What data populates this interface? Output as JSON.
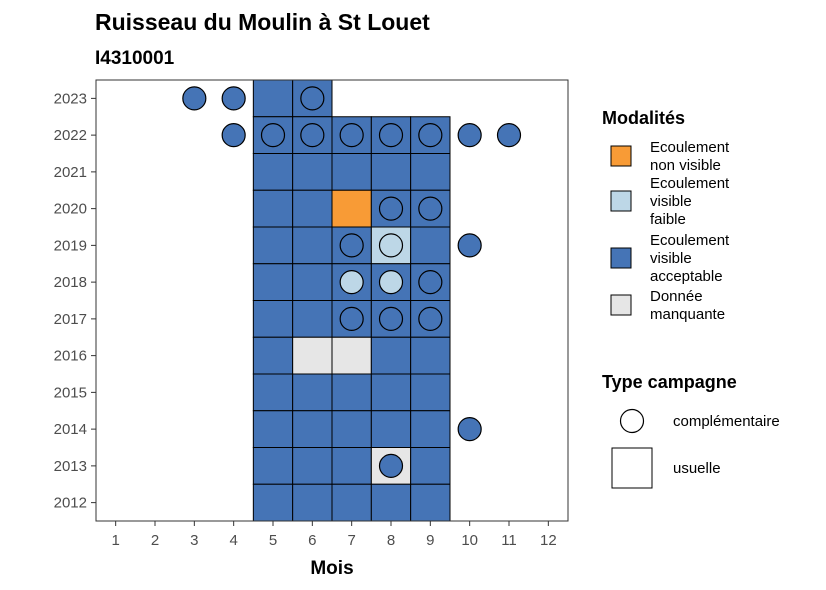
{
  "chart_data": {
    "type": "heatmap",
    "title": "Ruisseau du Moulin à St Louet",
    "subtitle": "I4310001",
    "xlabel": "Mois",
    "ylabel": "",
    "x_ticks": [
      "1",
      "2",
      "3",
      "4",
      "5",
      "6",
      "7",
      "8",
      "9",
      "10",
      "11",
      "12"
    ],
    "y_ticks": [
      "2012",
      "2013",
      "2014",
      "2015",
      "2016",
      "2017",
      "2018",
      "2019",
      "2020",
      "2021",
      "2022",
      "2023"
    ],
    "xlim": [
      0.5,
      12.5
    ],
    "ylim": [
      2011.5,
      2023.5
    ],
    "grid": false,
    "legend_position": "right",
    "colors": {
      "Ecoulement non visible": "#f89b36",
      "Ecoulement visible faible": "#bdd7e7",
      "Ecoulement visible acceptable": "#4574b6",
      "Donnée manquante": "#e6e6e6"
    },
    "squares": [
      {
        "year": 2023,
        "month": 5,
        "value": "Ecoulement visible acceptable"
      },
      {
        "year": 2023,
        "month": 6,
        "value": "Ecoulement visible acceptable"
      },
      {
        "year": 2022,
        "month": 5,
        "value": "Ecoulement visible acceptable"
      },
      {
        "year": 2022,
        "month": 6,
        "value": "Ecoulement visible acceptable"
      },
      {
        "year": 2022,
        "month": 7,
        "value": "Ecoulement visible acceptable"
      },
      {
        "year": 2022,
        "month": 8,
        "value": "Ecoulement visible acceptable"
      },
      {
        "year": 2022,
        "month": 9,
        "value": "Ecoulement visible acceptable"
      },
      {
        "year": 2021,
        "month": 5,
        "value": "Ecoulement visible acceptable"
      },
      {
        "year": 2021,
        "month": 6,
        "value": "Ecoulement visible acceptable"
      },
      {
        "year": 2021,
        "month": 7,
        "value": "Ecoulement visible acceptable"
      },
      {
        "year": 2021,
        "month": 8,
        "value": "Ecoulement visible acceptable"
      },
      {
        "year": 2021,
        "month": 9,
        "value": "Ecoulement visible acceptable"
      },
      {
        "year": 2020,
        "month": 5,
        "value": "Ecoulement visible acceptable"
      },
      {
        "year": 2020,
        "month": 6,
        "value": "Ecoulement visible acceptable"
      },
      {
        "year": 2020,
        "month": 7,
        "value": "Ecoulement non visible"
      },
      {
        "year": 2020,
        "month": 8,
        "value": "Ecoulement visible acceptable"
      },
      {
        "year": 2020,
        "month": 9,
        "value": "Ecoulement visible acceptable"
      },
      {
        "year": 2019,
        "month": 5,
        "value": "Ecoulement visible acceptable"
      },
      {
        "year": 2019,
        "month": 6,
        "value": "Ecoulement visible acceptable"
      },
      {
        "year": 2019,
        "month": 7,
        "value": "Ecoulement visible acceptable"
      },
      {
        "year": 2019,
        "month": 8,
        "value": "Ecoulement visible faible"
      },
      {
        "year": 2019,
        "month": 9,
        "value": "Ecoulement visible acceptable"
      },
      {
        "year": 2018,
        "month": 5,
        "value": "Ecoulement visible acceptable"
      },
      {
        "year": 2018,
        "month": 6,
        "value": "Ecoulement visible acceptable"
      },
      {
        "year": 2018,
        "month": 7,
        "value": "Ecoulement visible acceptable"
      },
      {
        "year": 2018,
        "month": 8,
        "value": "Ecoulement visible acceptable"
      },
      {
        "year": 2018,
        "month": 9,
        "value": "Ecoulement visible acceptable"
      },
      {
        "year": 2017,
        "month": 5,
        "value": "Ecoulement visible acceptable"
      },
      {
        "year": 2017,
        "month": 6,
        "value": "Ecoulement visible acceptable"
      },
      {
        "year": 2017,
        "month": 7,
        "value": "Ecoulement visible acceptable"
      },
      {
        "year": 2017,
        "month": 8,
        "value": "Ecoulement visible acceptable"
      },
      {
        "year": 2017,
        "month": 9,
        "value": "Ecoulement visible acceptable"
      },
      {
        "year": 2016,
        "month": 5,
        "value": "Ecoulement visible acceptable"
      },
      {
        "year": 2016,
        "month": 6,
        "value": "Donnée manquante"
      },
      {
        "year": 2016,
        "month": 7,
        "value": "Donnée manquante"
      },
      {
        "year": 2016,
        "month": 8,
        "value": "Ecoulement visible acceptable"
      },
      {
        "year": 2016,
        "month": 9,
        "value": "Ecoulement visible acceptable"
      },
      {
        "year": 2015,
        "month": 5,
        "value": "Ecoulement visible acceptable"
      },
      {
        "year": 2015,
        "month": 6,
        "value": "Ecoulement visible acceptable"
      },
      {
        "year": 2015,
        "month": 7,
        "value": "Ecoulement visible acceptable"
      },
      {
        "year": 2015,
        "month": 8,
        "value": "Ecoulement visible acceptable"
      },
      {
        "year": 2015,
        "month": 9,
        "value": "Ecoulement visible acceptable"
      },
      {
        "year": 2014,
        "month": 5,
        "value": "Ecoulement visible acceptable"
      },
      {
        "year": 2014,
        "month": 6,
        "value": "Ecoulement visible acceptable"
      },
      {
        "year": 2014,
        "month": 7,
        "value": "Ecoulement visible acceptable"
      },
      {
        "year": 2014,
        "month": 8,
        "value": "Ecoulement visible acceptable"
      },
      {
        "year": 2014,
        "month": 9,
        "value": "Ecoulement visible acceptable"
      },
      {
        "year": 2013,
        "month": 5,
        "value": "Ecoulement visible acceptable"
      },
      {
        "year": 2013,
        "month": 6,
        "value": "Ecoulement visible acceptable"
      },
      {
        "year": 2013,
        "month": 7,
        "value": "Ecoulement visible acceptable"
      },
      {
        "year": 2013,
        "month": 8,
        "value": "Donnée manquante"
      },
      {
        "year": 2013,
        "month": 9,
        "value": "Ecoulement visible acceptable"
      },
      {
        "year": 2012,
        "month": 5,
        "value": "Ecoulement visible acceptable"
      },
      {
        "year": 2012,
        "month": 6,
        "value": "Ecoulement visible acceptable"
      },
      {
        "year": 2012,
        "month": 7,
        "value": "Ecoulement visible acceptable"
      },
      {
        "year": 2012,
        "month": 8,
        "value": "Ecoulement visible acceptable"
      },
      {
        "year": 2012,
        "month": 9,
        "value": "Ecoulement visible acceptable"
      }
    ],
    "circles": [
      {
        "year": 2023,
        "month": 3,
        "value": "Ecoulement visible acceptable"
      },
      {
        "year": 2023,
        "month": 4,
        "value": "Ecoulement visible acceptable"
      },
      {
        "year": 2023,
        "month": 6,
        "value": "Ecoulement visible acceptable"
      },
      {
        "year": 2022,
        "month": 4,
        "value": "Ecoulement visible acceptable"
      },
      {
        "year": 2022,
        "month": 5,
        "value": "Ecoulement visible acceptable"
      },
      {
        "year": 2022,
        "month": 6,
        "value": "Ecoulement visible acceptable"
      },
      {
        "year": 2022,
        "month": 7,
        "value": "Ecoulement visible acceptable"
      },
      {
        "year": 2022,
        "month": 8,
        "value": "Ecoulement visible acceptable"
      },
      {
        "year": 2022,
        "month": 9,
        "value": "Ecoulement visible acceptable"
      },
      {
        "year": 2022,
        "month": 10,
        "value": "Ecoulement visible acceptable"
      },
      {
        "year": 2022,
        "month": 11,
        "value": "Ecoulement visible acceptable"
      },
      {
        "year": 2020,
        "month": 8,
        "value": "Ecoulement visible acceptable"
      },
      {
        "year": 2020,
        "month": 9,
        "value": "Ecoulement visible acceptable"
      },
      {
        "year": 2019,
        "month": 7,
        "value": "Ecoulement visible acceptable"
      },
      {
        "year": 2019,
        "month": 8,
        "value": "Ecoulement visible faible"
      },
      {
        "year": 2019,
        "month": 10,
        "value": "Ecoulement visible acceptable"
      },
      {
        "year": 2018,
        "month": 7,
        "value": "Ecoulement visible faible"
      },
      {
        "year": 2018,
        "month": 8,
        "value": "Ecoulement visible faible"
      },
      {
        "year": 2018,
        "month": 9,
        "value": "Ecoulement visible acceptable"
      },
      {
        "year": 2017,
        "month": 7,
        "value": "Ecoulement visible acceptable"
      },
      {
        "year": 2017,
        "month": 8,
        "value": "Ecoulement visible acceptable"
      },
      {
        "year": 2017,
        "month": 9,
        "value": "Ecoulement visible acceptable"
      },
      {
        "year": 2014,
        "month": 10,
        "value": "Ecoulement visible acceptable"
      },
      {
        "year": 2013,
        "month": 8,
        "value": "Ecoulement visible acceptable"
      }
    ],
    "legend_modalites": {
      "title": "Modalités",
      "items": [
        {
          "lines": [
            "Ecoulement",
            "non visible"
          ],
          "key": "Ecoulement non visible"
        },
        {
          "lines": [
            "Ecoulement",
            "visible",
            "faible"
          ],
          "key": "Ecoulement visible faible"
        },
        {
          "lines": [
            "Ecoulement",
            "visible",
            "acceptable"
          ],
          "key": "Ecoulement visible acceptable"
        },
        {
          "lines": [
            "Donnée",
            "manquante"
          ],
          "key": "Donnée manquante"
        }
      ]
    },
    "legend_type": {
      "title": "Type campagne",
      "items": [
        {
          "label": "complémentaire",
          "shape": "circle"
        },
        {
          "label": "usuelle",
          "shape": "square"
        }
      ]
    }
  }
}
